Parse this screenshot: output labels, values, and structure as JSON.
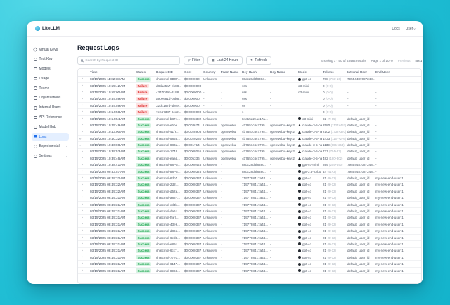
{
  "header": {
    "logo_text": "LiteLLM",
    "docs_label": "Docs",
    "user_label": "User"
  },
  "sidebar": {
    "items": [
      {
        "label": "Virtual Keys",
        "icon": "key-icon",
        "active": false,
        "has_chevron": false
      },
      {
        "label": "Test Key",
        "icon": "test-key-icon",
        "active": false,
        "has_chevron": false
      },
      {
        "label": "Models",
        "icon": "models-icon",
        "active": false,
        "has_chevron": false
      },
      {
        "label": "Usage",
        "icon": "usage-icon",
        "active": false,
        "has_chevron": false
      },
      {
        "label": "Teams",
        "icon": "teams-icon",
        "active": false,
        "has_chevron": false
      },
      {
        "label": "Organizations",
        "icon": "organizations-icon",
        "active": false,
        "has_chevron": false
      },
      {
        "label": "Internal Users",
        "icon": "internal-users-icon",
        "active": false,
        "has_chevron": false
      },
      {
        "label": "API Reference",
        "icon": "api-reference-icon",
        "active": false,
        "has_chevron": false
      },
      {
        "label": "Model Hub",
        "icon": "model-hub-icon",
        "active": false,
        "has_chevron": false
      },
      {
        "label": "Logs",
        "icon": "logs-icon",
        "active": true,
        "has_chevron": false
      },
      {
        "label": "Experimental",
        "icon": "experimental-icon",
        "active": false,
        "has_chevron": true
      },
      {
        "label": "Settings",
        "icon": "settings-icon",
        "active": false,
        "has_chevron": true
      }
    ]
  },
  "main": {
    "title": "Request Logs",
    "toolbar": {
      "search_placeholder": "Search by Request ID",
      "search_icon": "search-icon",
      "filter_label": "Filter",
      "filter_icon": "funnel-icon",
      "range_label": "Last 24 Hours",
      "range_icon": "calendar-icon",
      "refresh_label": "Refresh",
      "refresh_icon": "refresh-icon"
    },
    "pagination": {
      "showing_text": "Showing 1 - 50 of 53484 results",
      "page_text": "Page 1 of 1070",
      "previous_label": "Previous",
      "next_label": "Next"
    },
    "table": {
      "columns": [
        "Time",
        "Status",
        "Request ID",
        "Cost",
        "Country",
        "Team Name",
        "Key Hash",
        "Key Name",
        "Model",
        "Tokens",
        "Internal User",
        "End User"
      ],
      "rows": [
        {
          "time": "03/15/2025 11:02:18 AM",
          "status": "Success",
          "request_id": "chatcmpl-8B07...",
          "cost": "$0.000080",
          "country": "Unknown",
          "team": "-",
          "key_hash": "88dc28d8f838c...",
          "key_name": "-",
          "model": "gpt-4o",
          "model_icon": "openai",
          "tokens": "788",
          "tokens_detail": "(772+16)",
          "internal_user": "79554487087248...",
          "end_user": "-",
          "expanded": false
        },
        {
          "time": "03/15/2025 10:55:42 AM",
          "status": "Failure",
          "request_id": "d8dad5a7-eb88...",
          "cost": "$0.0000000",
          "country": "-",
          "team": "-",
          "key_hash": "sss",
          "key_name": "-",
          "model": "o3-mini",
          "model_icon": "",
          "tokens": "0",
          "tokens_detail": "(0+0)",
          "internal_user": "-",
          "end_user": "-",
          "expanded": false
        },
        {
          "time": "03/15/2025 10:55:00 AM",
          "status": "Failure",
          "request_id": "4347bd9b-3188...",
          "cost": "$0.0000000",
          "country": "-",
          "team": "-",
          "key_hash": "sss",
          "key_name": "-",
          "model": "o3-mini",
          "model_icon": "",
          "tokens": "0",
          "tokens_detail": "(0+0)",
          "internal_user": "-",
          "end_user": "-",
          "expanded": false
        },
        {
          "time": "03/15/2025 10:54:59 AM",
          "status": "Failure",
          "request_id": "a9be681d-b8b8...",
          "cost": "$0.000000",
          "country": "-",
          "team": "-",
          "key_hash": "sss",
          "key_name": "-",
          "model": "",
          "model_icon": "",
          "tokens": "0",
          "tokens_detail": "(0+0)",
          "internal_user": "-",
          "end_user": "-",
          "expanded": false
        },
        {
          "time": "03/15/2025 10:54:59 AM",
          "status": "Failure",
          "request_id": "32dc187d-4b4e...",
          "cost": "$0.000000",
          "country": "-",
          "team": "-",
          "key_hash": "ss",
          "key_name": "-",
          "model": "",
          "model_icon": "",
          "tokens": "0",
          "tokens_detail": "(0+0)",
          "internal_user": "-",
          "end_user": "-",
          "expanded": false
        },
        {
          "time": "03/15/2025 10:54:58 AM",
          "status": "Failure",
          "request_id": "7eb67387-6cc2...",
          "cost": "$0.0000000",
          "country": "Unknown",
          "team": "-",
          "key_hash": "s",
          "key_name": "-",
          "model": "",
          "model_icon": "",
          "tokens": "0",
          "tokens_detail": "(0+0)",
          "internal_user": "-",
          "end_user": "-",
          "expanded": false
        },
        {
          "time": "03/15/2025 10:54:54 AM",
          "status": "Success",
          "request_id": "chatcmpl-b87e...",
          "cost": "$0.0003382",
          "country": "Unknown",
          "team": "-",
          "key_hash": "84e15a2eac17a...",
          "key_name": "-",
          "model": "o3-mini",
          "model_icon": "openai",
          "tokens": "92",
          "tokens_detail": "(7+85)",
          "internal_user": "default_user_id",
          "end_user": "-",
          "expanded": false
        },
        {
          "time": "03/15/2025 10:45:49 AM",
          "status": "Success",
          "request_id": "chatcmpl-ebbe...",
          "cost": "$0.003674",
          "country": "Unknown",
          "team": "openwebui",
          "key_hash": "4b7651c6c7795...",
          "key_name": "openwebui-key-2",
          "model": "claude-3-5-hai...",
          "model_icon": "anthropic",
          "tokens": "2580",
          "tokens_detail": "(2127+453)",
          "internal_user": "default_user_id",
          "end_user": "-",
          "expanded": false
        },
        {
          "time": "03/15/2025 10:43:00 AM",
          "status": "Success",
          "request_id": "chatcmpl-41fY...",
          "cost": "$0.0028908",
          "country": "Unknown",
          "team": "openwebui",
          "key_hash": "4b7651c6c7795...",
          "key_name": "openwebui-key-2",
          "model": "claude-3-5-hai...",
          "model_icon": "anthropic",
          "tokens": "2102",
          "tokens_detail": "(1732+370)",
          "internal_user": "default_user_id",
          "end_user": "-",
          "expanded": false
        },
        {
          "time": "03/15/2025 10:40:32 AM",
          "status": "Success",
          "request_id": "chatcmpl-5858...",
          "cost": "$0.0020230",
          "country": "Unknown",
          "team": "openwebui",
          "key_hash": "4b7651c6c7795...",
          "key_name": "openwebui-key-2",
          "model": "claude-3-5-hai...",
          "model_icon": "anthropic",
          "tokens": "1433",
          "tokens_detail": "(1157+276)",
          "internal_user": "default_user_id",
          "end_user": "-",
          "expanded": true
        },
        {
          "time": "03/15/2025 10:40:08 AM",
          "status": "Success",
          "request_id": "chatcmpl-883a...",
          "cost": "$0.001714",
          "country": "Unknown",
          "team": "openwebui",
          "key_hash": "4b7651c6c7795...",
          "key_name": "openwebui-key-2",
          "model": "claude-3-5-hai...",
          "model_icon": "anthropic",
          "tokens": "1139",
          "tokens_detail": "(885+254)",
          "internal_user": "default_user_id",
          "end_user": "-",
          "expanded": true
        },
        {
          "time": "03/15/2025 10:39:53 AM",
          "status": "Success",
          "request_id": "chatcmpl-1748...",
          "cost": "$0.0008055",
          "country": "Unknown",
          "team": "openwebui",
          "key_hash": "4b7651c6c7795...",
          "key_name": "openwebui-key-2",
          "model": "claude-3-5-hai...",
          "model_icon": "anthropic",
          "tokens": "727",
          "tokens_detail": "(704+23)",
          "internal_user": "default_user_id",
          "end_user": "-",
          "expanded": false
        },
        {
          "time": "03/15/2025 10:39:46 AM",
          "status": "Success",
          "request_id": "chatcmpl-eaa6...",
          "cost": "$0.005336",
          "country": "Unknown",
          "team": "openwebui",
          "key_hash": "4b7651c6c7795...",
          "key_name": "openwebui-key-2",
          "model": "claude-3-5-hai...",
          "model_icon": "anthropic",
          "tokens": "482",
          "tokens_detail": "(180+302)",
          "internal_user": "default_user_id",
          "end_user": "-",
          "expanded": false
        },
        {
          "time": "03/15/2025 10:38:41 AM",
          "status": "Success",
          "request_id": "chatcmpl-88P5...",
          "cost": "$0.0000445",
          "country": "Unknown",
          "team": "-",
          "key_hash": "88dc28d8f838c...",
          "key_name": "-",
          "model": "gpt-4o-mini",
          "model_icon": "openai",
          "tokens": "899",
          "tokens_detail": "(209+690)",
          "internal_user": "79554487087248...",
          "end_user": "-",
          "expanded": false
        },
        {
          "time": "03/15/2025 09:53:57 AM",
          "status": "Success",
          "request_id": "chatcmpl-88P3...",
          "cost": "$0.0000325",
          "country": "Unknown",
          "team": "-",
          "key_hash": "88dc28d8f838c...",
          "key_name": "-",
          "model": "gpt-3.5-turbo",
          "model_icon": "openai",
          "tokens": "44",
          "tokens_detail": "(41+3)",
          "internal_user": "79554487087248...",
          "end_user": "-",
          "expanded": false
        },
        {
          "time": "03/15/2025 08:49:32 AM",
          "status": "Success",
          "request_id": "chatcmpl-6db7...",
          "cost": "$0.0000337",
          "country": "Unknown",
          "team": "-",
          "key_hash": "7197798417a44...",
          "key_name": "-",
          "model": "gpt-4o",
          "model_icon": "openai",
          "tokens": "21",
          "tokens_detail": "(9+12)",
          "internal_user": "default_user_id",
          "end_user": "my-new-end-user-1",
          "expanded": false
        },
        {
          "time": "03/15/2025 08:49:32 AM",
          "status": "Success",
          "request_id": "chatcmpl-2d8f...",
          "cost": "$0.0000337",
          "country": "Unknown",
          "team": "-",
          "key_hash": "7197798417a44...",
          "key_name": "-",
          "model": "gpt-4o",
          "model_icon": "openai",
          "tokens": "21",
          "tokens_detail": "(9+12)",
          "internal_user": "default_user_id",
          "end_user": "my-new-end-user-1",
          "expanded": false
        },
        {
          "time": "03/15/2025 08:49:32 AM",
          "status": "Success",
          "request_id": "chatcmpl-d52a...",
          "cost": "$0.0000337",
          "country": "Unknown",
          "team": "-",
          "key_hash": "7197798417a44...",
          "key_name": "-",
          "model": "gpt-4o",
          "model_icon": "openai",
          "tokens": "21",
          "tokens_detail": "(9+12)",
          "internal_user": "default_user_id",
          "end_user": "my-new-end-user-1",
          "expanded": false
        },
        {
          "time": "03/15/2025 08:49:31 AM",
          "status": "Success",
          "request_id": "chatcmpl-a887...",
          "cost": "$0.0000337",
          "country": "Unknown",
          "team": "-",
          "key_hash": "7197798417a44...",
          "key_name": "-",
          "model": "gpt-4o",
          "model_icon": "openai",
          "tokens": "21",
          "tokens_detail": "(9+12)",
          "internal_user": "default_user_id",
          "end_user": "my-new-end-user-1",
          "expanded": false
        },
        {
          "time": "03/15/2025 08:49:31 AM",
          "status": "Success",
          "request_id": "chatcmpl-cd3b...",
          "cost": "$0.0000337",
          "country": "Unknown",
          "team": "-",
          "key_hash": "7197798417a44...",
          "key_name": "-",
          "model": "gpt-4o",
          "model_icon": "openai",
          "tokens": "21",
          "tokens_detail": "(9+12)",
          "internal_user": "default_user_id",
          "end_user": "my-new-end-user-1",
          "expanded": false
        },
        {
          "time": "03/15/2025 08:49:31 AM",
          "status": "Success",
          "request_id": "chatcmpl-da61...",
          "cost": "$0.0000337",
          "country": "Unknown",
          "team": "-",
          "key_hash": "7197798417a44...",
          "key_name": "-",
          "model": "gpt-4o",
          "model_icon": "openai",
          "tokens": "21",
          "tokens_detail": "(9+12)",
          "internal_user": "default_user_id",
          "end_user": "my-new-end-user-1",
          "expanded": false
        },
        {
          "time": "03/15/2025 08:49:31 AM",
          "status": "Success",
          "request_id": "chatcmpl-f5e7...",
          "cost": "$0.0000337",
          "country": "Unknown",
          "team": "-",
          "key_hash": "7197798417a44...",
          "key_name": "-",
          "model": "gpt-4o",
          "model_icon": "openai",
          "tokens": "21",
          "tokens_detail": "(9+12)",
          "internal_user": "default_user_id",
          "end_user": "my-new-end-user-1",
          "expanded": false
        },
        {
          "time": "03/15/2025 08:49:31 AM",
          "status": "Success",
          "request_id": "chatcmpl-43e9...",
          "cost": "$0.0000337",
          "country": "Unknown",
          "team": "-",
          "key_hash": "7197798417a44...",
          "key_name": "-",
          "model": "gpt-4o",
          "model_icon": "openai",
          "tokens": "21",
          "tokens_detail": "(9+12)",
          "internal_user": "default_user_id",
          "end_user": "my-new-end-user-1",
          "expanded": false
        },
        {
          "time": "03/15/2025 08:49:31 AM",
          "status": "Success",
          "request_id": "chatcmpl-d865...",
          "cost": "$0.0000337",
          "country": "Unknown",
          "team": "-",
          "key_hash": "7197798417a44...",
          "key_name": "-",
          "model": "gpt-4o",
          "model_icon": "openai",
          "tokens": "21",
          "tokens_detail": "(9+12)",
          "internal_user": "default_user_id",
          "end_user": "my-new-end-user-1",
          "expanded": false
        },
        {
          "time": "03/15/2025 08:49:31 AM",
          "status": "Success",
          "request_id": "chatcmpl-6ed8...",
          "cost": "$0.0000337",
          "country": "Unknown",
          "team": "-",
          "key_hash": "7197798417a44...",
          "key_name": "-",
          "model": "gpt-4o",
          "model_icon": "openai",
          "tokens": "21",
          "tokens_detail": "(9+12)",
          "internal_user": "default_user_id",
          "end_user": "my-new-end-user-1",
          "expanded": false
        },
        {
          "time": "03/15/2025 08:49:31 AM",
          "status": "Success",
          "request_id": "chatcmpl-e891...",
          "cost": "$0.0000337",
          "country": "Unknown",
          "team": "-",
          "key_hash": "7197798417a44...",
          "key_name": "-",
          "model": "gpt-4o",
          "model_icon": "openai",
          "tokens": "21",
          "tokens_detail": "(9+12)",
          "internal_user": "default_user_id",
          "end_user": "my-new-end-user-1",
          "expanded": false
        },
        {
          "time": "03/15/2025 08:49:31 AM",
          "status": "Success",
          "request_id": "chatcmpl-6cc7...",
          "cost": "$0.0000337",
          "country": "Unknown",
          "team": "-",
          "key_hash": "7197798417a44...",
          "key_name": "-",
          "model": "gpt-4o",
          "model_icon": "openai",
          "tokens": "21",
          "tokens_detail": "(9+12)",
          "internal_user": "default_user_id",
          "end_user": "my-new-end-user-1",
          "expanded": false
        },
        {
          "time": "03/15/2025 08:49:31 AM",
          "status": "Success",
          "request_id": "chatcmpl-77e1...",
          "cost": "$0.0000337",
          "country": "Unknown",
          "team": "-",
          "key_hash": "7197798417a44...",
          "key_name": "-",
          "model": "gpt-4o",
          "model_icon": "openai",
          "tokens": "21",
          "tokens_detail": "(9+12)",
          "internal_user": "default_user_id",
          "end_user": "my-new-end-user-1",
          "expanded": false
        },
        {
          "time": "03/15/2025 08:49:31 AM",
          "status": "Success",
          "request_id": "chatcmpl-6147...",
          "cost": "$0.0000337",
          "country": "Unknown",
          "team": "-",
          "key_hash": "7197798417a44...",
          "key_name": "-",
          "model": "gpt-4o",
          "model_icon": "openai",
          "tokens": "21",
          "tokens_detail": "(9+12)",
          "internal_user": "default_user_id",
          "end_user": "my-new-end-user-1",
          "expanded": false
        },
        {
          "time": "03/15/2025 08:49:31 AM",
          "status": "Success",
          "request_id": "chatcmpl-8968...",
          "cost": "$0.0000337",
          "country": "Unknown",
          "team": "-",
          "key_hash": "7197798417a44...",
          "key_name": "-",
          "model": "gpt-4o",
          "model_icon": "openai",
          "tokens": "21",
          "tokens_detail": "(9+12)",
          "internal_user": "default_user_id",
          "end_user": "my-new-end-user-1",
          "expanded": false
        }
      ]
    }
  },
  "colors": {
    "accent_teal": "#25c2d8",
    "active_item_bg": "#e4efff",
    "active_item_text": "#1e6feb",
    "success_bg": "#d7f3e3",
    "success_text": "#16a34a",
    "failure_bg": "#fde2e2",
    "failure_text": "#dc2626"
  }
}
